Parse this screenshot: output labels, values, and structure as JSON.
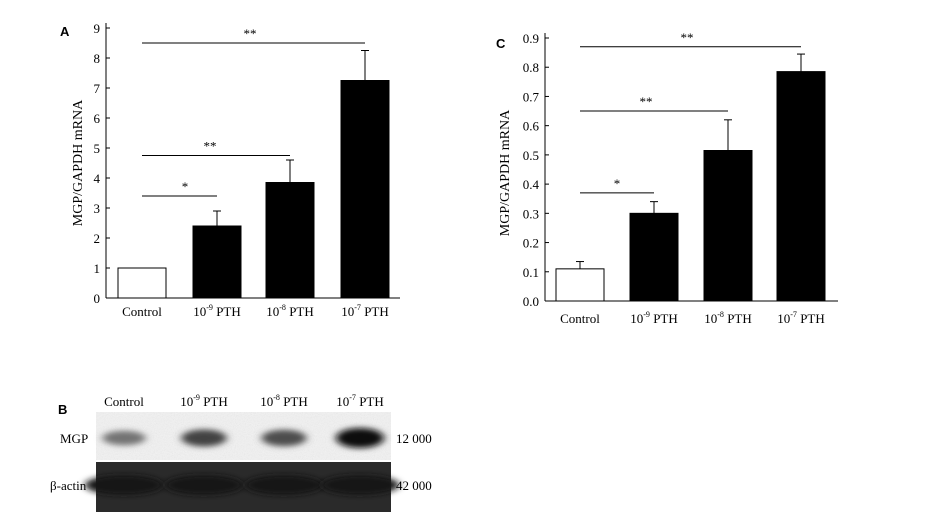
{
  "panel_labels": [
    "A",
    "B",
    "C"
  ],
  "chart_data": [
    {
      "type": "bar",
      "panel": "A",
      "title": "",
      "ylabel": "MGP/GAPDH mRNA",
      "xlabel": "",
      "ylim": [
        0,
        9
      ],
      "yticks": [
        0,
        1,
        2,
        3,
        4,
        5,
        6,
        7,
        8,
        9
      ],
      "ytick_labels": [
        "0",
        "1",
        "2",
        "3",
        "4",
        "5",
        "6",
        "7",
        "8",
        "9"
      ],
      "categories": [
        "Control",
        "10-9 PTH",
        "10-8 PTH",
        "10-7 PTH"
      ],
      "category_labels": [
        {
          "base": "Control",
          "exp": "",
          "unit": ""
        },
        {
          "base": "10",
          "exp": "-9",
          "unit": " PTH"
        },
        {
          "base": "10",
          "exp": "-8",
          "unit": " PTH"
        },
        {
          "base": "10",
          "exp": "-7",
          "unit": " PTH"
        }
      ],
      "values": [
        1.0,
        2.4,
        3.85,
        7.25
      ],
      "errors": [
        0.0,
        0.5,
        0.75,
        1.0
      ],
      "bar_fills": [
        "#ffffff",
        "#000000",
        "#000000",
        "#000000"
      ],
      "significance": [
        {
          "from": 0,
          "to": 1,
          "label": "*",
          "y": 3.4
        },
        {
          "from": 0,
          "to": 2,
          "label": "**",
          "y": 4.75
        },
        {
          "from": 0,
          "to": 3,
          "label": "**",
          "y": 8.5
        }
      ]
    },
    {
      "type": "bar",
      "panel": "C",
      "title": "",
      "ylabel": "MGP/GAPDH mRNA",
      "xlabel": "",
      "ylim": [
        0,
        0.9
      ],
      "yticks": [
        0,
        0.1,
        0.2,
        0.3,
        0.4,
        0.5,
        0.6,
        0.7,
        0.8,
        0.9
      ],
      "ytick_labels": [
        "0.0",
        "0.1",
        "0.2",
        "0.3",
        "0.4",
        "0.5",
        "0.6",
        "0.7",
        "0.8",
        "0.9"
      ],
      "categories": [
        "Control",
        "10-9 PTH",
        "10-8 PTH",
        "10-7 PTH"
      ],
      "category_labels": [
        {
          "base": "Control",
          "exp": "",
          "unit": ""
        },
        {
          "base": "10",
          "exp": "-9",
          "unit": " PTH"
        },
        {
          "base": "10",
          "exp": "-8",
          "unit": " PTH"
        },
        {
          "base": "10",
          "exp": "-7",
          "unit": " PTH"
        }
      ],
      "values": [
        0.11,
        0.3,
        0.515,
        0.785
      ],
      "errors": [
        0.025,
        0.04,
        0.105,
        0.06
      ],
      "bar_fills": [
        "#ffffff",
        "#000000",
        "#000000",
        "#000000"
      ],
      "significance": [
        {
          "from": 0,
          "to": 1,
          "label": "*",
          "y": 0.37
        },
        {
          "from": 0,
          "to": 2,
          "label": "**",
          "y": 0.65
        },
        {
          "from": 0,
          "to": 3,
          "label": "**",
          "y": 0.87
        }
      ]
    }
  ],
  "blot": {
    "panel": "B",
    "lanes": [
      {
        "base": "Control",
        "exp": "",
        "unit": ""
      },
      {
        "base": "10",
        "exp": "-9",
        "unit": " PTH"
      },
      {
        "base": "10",
        "exp": "-8",
        "unit": " PTH"
      },
      {
        "base": "10",
        "exp": "-7",
        "unit": " PTH"
      }
    ],
    "rows": [
      {
        "label": "MGP",
        "mw": "12 000",
        "intensity": [
          0.45,
          0.7,
          0.65,
          1.0
        ]
      },
      {
        "label": "β-actin",
        "mw": "42 000",
        "intensity": [
          0.95,
          0.95,
          0.95,
          0.95
        ]
      }
    ]
  }
}
